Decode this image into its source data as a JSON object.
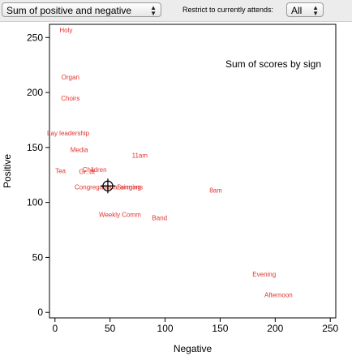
{
  "controls": {
    "measure_value": "Sum of positive and negative",
    "restrict_label": "Restrict to currently attends:",
    "attend_value": "All"
  },
  "chart_data": {
    "type": "scatter",
    "title": "Sum of scores by sign",
    "xlabel": "Negative",
    "ylabel": "Positive",
    "xlim": [
      -5,
      255
    ],
    "ylim": [
      -5,
      262
    ],
    "xticks": [
      0,
      50,
      100,
      150,
      200,
      250
    ],
    "yticks": [
      0,
      50,
      100,
      150,
      200,
      250
    ],
    "label_color": "#e0342f",
    "points": [
      {
        "label": "Holy",
        "x": 10,
        "y": 257
      },
      {
        "label": "Organ",
        "x": 14,
        "y": 214
      },
      {
        "label": "Choirs",
        "x": 14,
        "y": 195
      },
      {
        "label": "Lay leadership",
        "x": 12,
        "y": 163
      },
      {
        "label": "Media",
        "x": 22,
        "y": 148
      },
      {
        "label": "11am",
        "x": 77,
        "y": 143
      },
      {
        "label": "Children",
        "x": 36,
        "y": 130
      },
      {
        "label": "Tea",
        "x": 5,
        "y": 129
      },
      {
        "label": "Gr..dt",
        "x": 29,
        "y": 128
      },
      {
        "label": "Congregational singing",
        "x": 48,
        "y": 114
      },
      {
        "label": "Sermons",
        "x": 68,
        "y": 114
      },
      {
        "label": "8am",
        "x": 146,
        "y": 111
      },
      {
        "label": "Weekly Comm",
        "x": 59,
        "y": 89
      },
      {
        "label": "Band",
        "x": 95,
        "y": 86
      },
      {
        "label": "Evening",
        "x": 190,
        "y": 35
      },
      {
        "label": "Afternoon",
        "x": 203,
        "y": 16
      }
    ],
    "marker": {
      "x": 48,
      "y": 115,
      "shape": "crosshair-circle"
    }
  }
}
